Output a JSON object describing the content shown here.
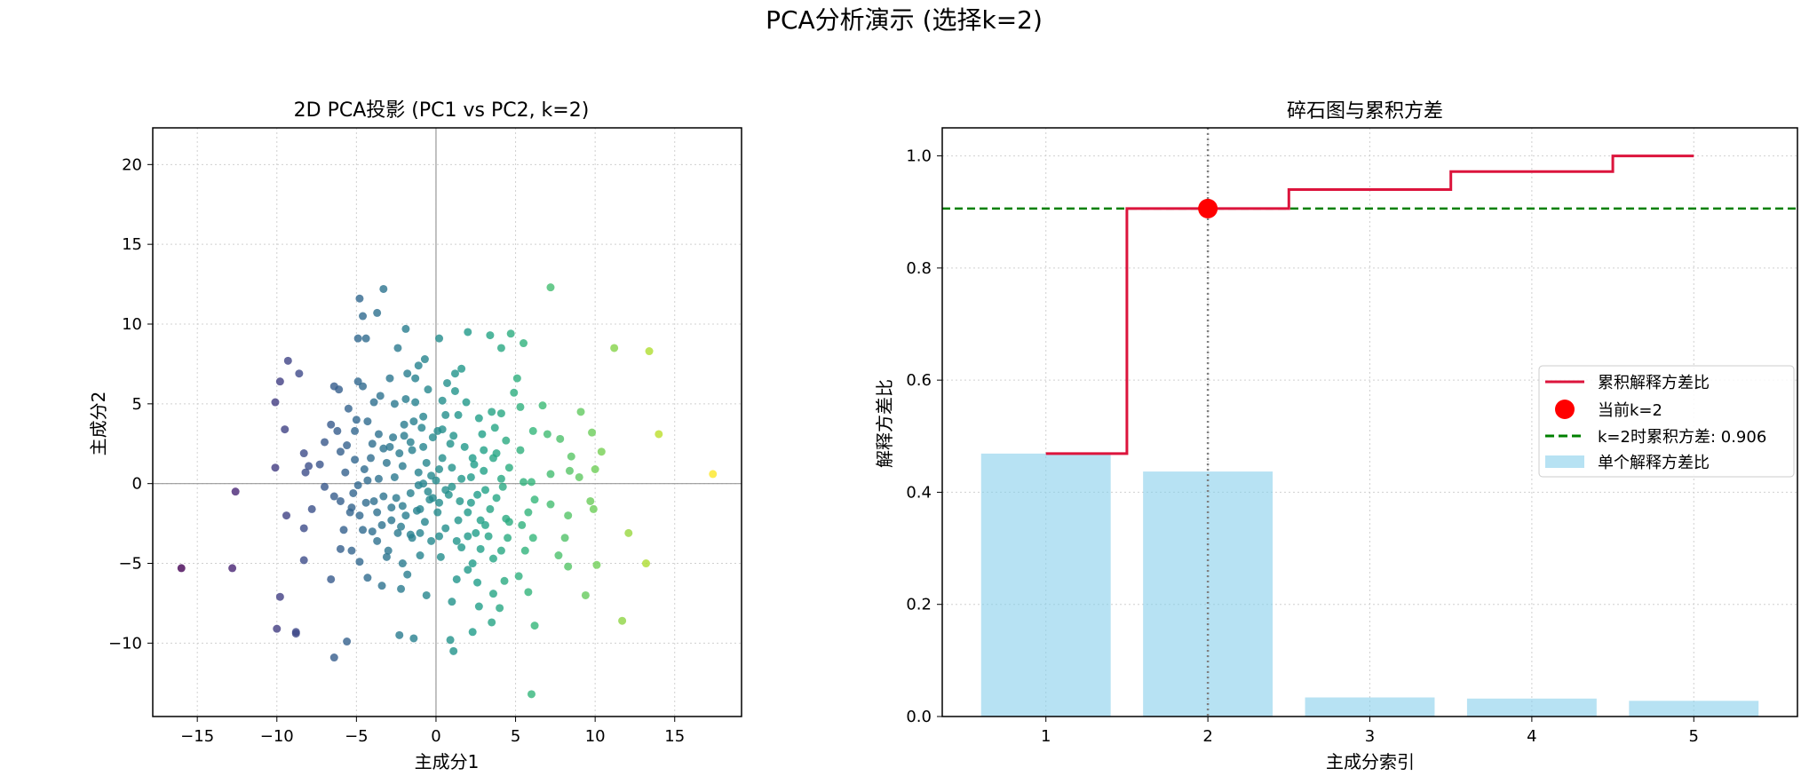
{
  "figure": {
    "suptitle": "PCA分析演示 (选择k=2)"
  },
  "chart_data": [
    {
      "type": "scatter",
      "title": "2D PCA投影 (PC1 vs PC2, k=2)",
      "xlabel": "主成分1",
      "ylabel": "主成分2",
      "xlim": [
        -17.8,
        19.2
      ],
      "ylim": [
        -14.6,
        22.3
      ],
      "xticks": [
        -15,
        -10,
        -5,
        0,
        5,
        10,
        15
      ],
      "yticks": [
        -10,
        -5,
        0,
        5,
        10,
        15,
        20
      ],
      "grid": true,
      "reference_lines": {
        "x": 0,
        "y": 0
      },
      "colormap": "viridis",
      "color_by": "x",
      "points": [
        [
          -16.0,
          -5.3
        ],
        [
          -12.8,
          -5.3
        ],
        [
          -12.6,
          -0.5
        ],
        [
          -10.0,
          -9.1
        ],
        [
          -9.8,
          -7.1
        ],
        [
          -10.1,
          5.1
        ],
        [
          -9.8,
          6.4
        ],
        [
          -9.3,
          7.7
        ],
        [
          -8.6,
          6.9
        ],
        [
          -9.5,
          3.4
        ],
        [
          -10.1,
          1.0
        ],
        [
          -9.4,
          -2.0
        ],
        [
          -8.8,
          -9.4
        ],
        [
          -8.8,
          -9.3
        ],
        [
          -8.3,
          -4.8
        ],
        [
          -8.3,
          -2.8
        ],
        [
          -8.3,
          1.9
        ],
        [
          -8.0,
          1.1
        ],
        [
          -8.2,
          0.7
        ],
        [
          -7.8,
          -1.6
        ],
        [
          -6.4,
          -10.9
        ],
        [
          -5.6,
          -9.9
        ],
        [
          -6.6,
          -6.0
        ],
        [
          -6.4,
          6.1
        ],
        [
          -6.1,
          5.9
        ],
        [
          -6.0,
          2.0
        ],
        [
          -6.6,
          3.7
        ],
        [
          -6.0,
          -1.1
        ],
        [
          -5.8,
          -2.9
        ],
        [
          -6.0,
          -4.1
        ],
        [
          -5.5,
          4.7
        ],
        [
          -5.1,
          1.5
        ],
        [
          -5.7,
          0.7
        ],
        [
          -5.4,
          -1.8
        ],
        [
          -5.3,
          -4.2
        ],
        [
          -4.8,
          11.6
        ],
        [
          -4.9,
          9.1
        ],
        [
          -4.6,
          10.5
        ],
        [
          -4.4,
          9.1
        ],
        [
          -3.7,
          10.7
        ],
        [
          -3.3,
          12.2
        ],
        [
          -4.9,
          6.4
        ],
        [
          -4.6,
          6.1
        ],
        [
          -3.5,
          5.5
        ],
        [
          -4.3,
          3.9
        ],
        [
          -4.0,
          2.5
        ],
        [
          -4.5,
          0.9
        ],
        [
          -4.9,
          -0.1
        ],
        [
          -4.4,
          -1.2
        ],
        [
          -3.7,
          -1.8
        ],
        [
          -4.0,
          -3.0
        ],
        [
          -4.8,
          -4.9
        ],
        [
          -4.3,
          -5.9
        ],
        [
          -3.4,
          -6.4
        ],
        [
          -3.0,
          -4.2
        ],
        [
          -2.8,
          -2.3
        ],
        [
          -2.4,
          -3.1
        ],
        [
          -2.1,
          -1.4
        ],
        [
          -2.6,
          0.4
        ],
        [
          -2.9,
          2.3
        ],
        [
          -2.3,
          1.9
        ],
        [
          -2.6,
          5.0
        ],
        [
          -2.0,
          3.7
        ],
        [
          -1.9,
          5.3
        ],
        [
          -1.4,
          3.9
        ],
        [
          -2.4,
          8.5
        ],
        [
          -1.9,
          9.7
        ],
        [
          -1.3,
          6.6
        ],
        [
          -1.1,
          7.4
        ],
        [
          -0.7,
          7.8
        ],
        [
          -1.3,
          5.1
        ],
        [
          -0.9,
          3.5
        ],
        [
          -1.5,
          2.1
        ],
        [
          -0.6,
          1.3
        ],
        [
          -1.1,
          -0.1
        ],
        [
          -0.5,
          -0.5
        ],
        [
          -1.2,
          -1.7
        ],
        [
          -1.6,
          -3.2
        ],
        [
          -1.0,
          -4.5
        ],
        [
          -1.8,
          -5.7
        ],
        [
          -2.2,
          -6.6
        ],
        [
          -2.3,
          -9.5
        ],
        [
          -1.4,
          -9.7
        ],
        [
          -0.6,
          -7.0
        ],
        [
          0.3,
          -4.6
        ],
        [
          0.6,
          -2.8
        ],
        [
          0.1,
          -1.8
        ],
        [
          0.8,
          -0.7
        ],
        [
          0.0,
          0.2
        ],
        [
          0.4,
          1.6
        ],
        [
          0.9,
          2.5
        ],
        [
          0.1,
          3.3
        ],
        [
          0.6,
          4.3
        ],
        [
          0.2,
          9.1
        ],
        [
          0.7,
          6.3
        ],
        [
          1.2,
          6.9
        ],
        [
          1.6,
          7.2
        ],
        [
          1.9,
          5.1
        ],
        [
          1.4,
          4.3
        ],
        [
          2.7,
          4.1
        ],
        [
          2.9,
          3.1
        ],
        [
          2.4,
          1.2
        ],
        [
          3.6,
          1.6
        ],
        [
          3.1,
          -0.4
        ],
        [
          2.2,
          -1.2
        ],
        [
          1.4,
          -2.3
        ],
        [
          2.0,
          -3.3
        ],
        [
          2.8,
          -4.1
        ],
        [
          2.0,
          -5.4
        ],
        [
          1.3,
          -6.0
        ],
        [
          2.6,
          -6.2
        ],
        [
          3.6,
          -6.9
        ],
        [
          1.0,
          -7.4
        ],
        [
          0.9,
          -9.8
        ],
        [
          1.1,
          -10.5
        ],
        [
          2.3,
          -9.3
        ],
        [
          3.5,
          -8.7
        ],
        [
          2.7,
          -7.7
        ],
        [
          4.0,
          -7.8
        ],
        [
          4.3,
          -6.1
        ],
        [
          5.2,
          -5.8
        ],
        [
          5.8,
          -6.8
        ],
        [
          6.2,
          -8.9
        ],
        [
          6.0,
          -13.2
        ],
        [
          7.2,
          12.3
        ],
        [
          5.5,
          8.8
        ],
        [
          4.7,
          9.4
        ],
        [
          3.4,
          9.3
        ],
        [
          2.0,
          9.5
        ],
        [
          4.1,
          8.5
        ],
        [
          5.1,
          6.6
        ],
        [
          4.9,
          5.7
        ],
        [
          5.3,
          4.8
        ],
        [
          4.1,
          4.4
        ],
        [
          3.5,
          4.5
        ],
        [
          3.7,
          3.5
        ],
        [
          4.4,
          2.7
        ],
        [
          5.3,
          2.1
        ],
        [
          6.1,
          3.3
        ],
        [
          7.0,
          3.1
        ],
        [
          6.7,
          4.9
        ],
        [
          7.8,
          2.8
        ],
        [
          9.1,
          4.5
        ],
        [
          9.8,
          3.2
        ],
        [
          10.4,
          2.0
        ],
        [
          8.5,
          1.7
        ],
        [
          7.2,
          0.6
        ],
        [
          6.0,
          0.1
        ],
        [
          5.5,
          0.1
        ],
        [
          8.4,
          0.8
        ],
        [
          9.0,
          0.4
        ],
        [
          10.0,
          0.9
        ],
        [
          9.7,
          -1.1
        ],
        [
          9.9,
          -1.6
        ],
        [
          7.2,
          -1.3
        ],
        [
          6.2,
          -1.0
        ],
        [
          5.8,
          -1.8
        ],
        [
          4.6,
          -2.4
        ],
        [
          4.4,
          -2.2
        ],
        [
          5.4,
          -2.6
        ],
        [
          6.1,
          -3.4
        ],
        [
          5.6,
          -4.2
        ],
        [
          7.7,
          -4.5
        ],
        [
          8.1,
          -3.4
        ],
        [
          8.3,
          -2.0
        ],
        [
          8.3,
          -5.2
        ],
        [
          10.1,
          -5.1
        ],
        [
          9.4,
          -7.0
        ],
        [
          11.7,
          -8.6
        ],
        [
          12.1,
          -3.1
        ],
        [
          13.2,
          -5.0
        ],
        [
          11.2,
          8.5
        ],
        [
          13.4,
          8.3
        ],
        [
          14.0,
          3.1
        ],
        [
          17.4,
          0.6
        ],
        [
          3.0,
          2.1
        ],
        [
          4.1,
          0.3
        ],
        [
          2.6,
          -0.7
        ],
        [
          3.1,
          -2.6
        ],
        [
          4.5,
          -3.4
        ],
        [
          3.6,
          -4.7
        ],
        [
          2.3,
          -5.0
        ],
        [
          1.6,
          -4.0
        ],
        [
          -0.3,
          -3.6
        ],
        [
          -0.7,
          -2.4
        ],
        [
          -1.5,
          -3.4
        ],
        [
          -2.1,
          -5.0
        ],
        [
          -3.1,
          -4.6
        ],
        [
          -3.7,
          -3.6
        ],
        [
          -4.6,
          -2.9
        ],
        [
          -5.3,
          -1.5
        ],
        [
          -6.4,
          -0.8
        ],
        [
          -7.0,
          -0.2
        ],
        [
          -7.3,
          1.2
        ],
        [
          -7.0,
          2.6
        ],
        [
          -6.2,
          3.3
        ],
        [
          -5.1,
          3.3
        ],
        [
          -3.6,
          3.1
        ],
        [
          -2.7,
          2.9
        ],
        [
          -1.6,
          2.6
        ],
        [
          -0.8,
          2.3
        ],
        [
          -0.2,
          2.9
        ],
        [
          0.4,
          3.4
        ],
        [
          1.1,
          3.0
        ],
        [
          1.8,
          2.3
        ],
        [
          2.3,
          1.6
        ],
        [
          1.0,
          1.0
        ],
        [
          0.2,
          0.9
        ],
        [
          -0.3,
          0.5
        ],
        [
          -0.8,
          0.0
        ],
        [
          -1.6,
          -0.6
        ],
        [
          -2.5,
          -0.9
        ],
        [
          -3.3,
          -0.8
        ],
        [
          -3.6,
          0.3
        ],
        [
          -3.1,
          1.3
        ],
        [
          -2.1,
          1.1
        ],
        [
          -1.1,
          0.7
        ],
        [
          -0.4,
          -1.0
        ],
        [
          0.2,
          -1.2
        ],
        [
          1.0,
          -0.2
        ],
        [
          1.5,
          -1.1
        ],
        [
          2.0,
          -1.8
        ],
        [
          2.8,
          -2.3
        ],
        [
          3.4,
          -1.6
        ],
        [
          3.8,
          -0.9
        ],
        [
          4.2,
          -0.2
        ],
        [
          4.6,
          1.0
        ],
        [
          3.8,
          1.9
        ],
        [
          3.0,
          0.8
        ],
        [
          2.2,
          0.4
        ],
        [
          1.6,
          0.3
        ],
        [
          0.6,
          -0.4
        ],
        [
          -0.2,
          -0.9
        ],
        [
          -1.0,
          -1.6
        ],
        [
          -1.9,
          -2.0
        ],
        [
          -2.8,
          -1.5
        ],
        [
          -3.9,
          -1.1
        ],
        [
          -4.3,
          0.2
        ],
        [
          -4.1,
          1.6
        ],
        [
          -3.3,
          2.2
        ],
        [
          -2.0,
          3.0
        ],
        [
          -0.8,
          4.2
        ],
        [
          0.4,
          5.2
        ],
        [
          1.2,
          5.8
        ],
        [
          -0.5,
          5.9
        ],
        [
          -1.8,
          6.9
        ],
        [
          -2.9,
          6.6
        ],
        [
          -3.9,
          5.1
        ],
        [
          -5.0,
          4.0
        ],
        [
          -5.6,
          2.4
        ],
        [
          -5.2,
          -0.6
        ],
        [
          -4.8,
          -2.0
        ],
        [
          -3.4,
          -2.6
        ],
        [
          -2.2,
          -2.7
        ],
        [
          -1.0,
          -3.1
        ],
        [
          0.2,
          -3.3
        ],
        [
          1.3,
          -3.6
        ],
        [
          2.5,
          -3.1
        ],
        [
          3.3,
          -3.3
        ],
        [
          4.1,
          -4.2
        ]
      ]
    },
    {
      "type": "bar",
      "title": "碎石图与累积方差",
      "xlabel": "主成分索引",
      "ylabel": "解释方差比",
      "categories": [
        1,
        2,
        3,
        4,
        5
      ],
      "xlim": [
        0.36,
        5.64
      ],
      "ylim": [
        0,
        1.05
      ],
      "xticks": [
        1,
        2,
        3,
        4,
        5
      ],
      "yticks": [
        0.0,
        0.2,
        0.4,
        0.6,
        0.8,
        1.0
      ],
      "ytick_labels": [
        "0.0",
        "0.2",
        "0.4",
        "0.6",
        "0.8",
        "1.0"
      ],
      "grid": true,
      "series": [
        {
          "name": "单个解释方差比",
          "kind": "bar",
          "color": "#87ceeb",
          "values": [
            0.469,
            0.437,
            0.034,
            0.032,
            0.028
          ]
        },
        {
          "name": "累积解释方差比",
          "kind": "step",
          "color": "#dc143c",
          "values": [
            0.469,
            0.906,
            0.94,
            0.972,
            1.0
          ]
        }
      ],
      "highlight_point": {
        "name": "当前k=2",
        "x": 2,
        "y": 0.906,
        "color": "#ff0000"
      },
      "hline": {
        "name": "k=2时累积方差: 0.906",
        "y": 0.906,
        "color": "#008000",
        "style": "dashed"
      },
      "vline": {
        "x": 2,
        "color": "#808080",
        "style": "dotted"
      },
      "legend": {
        "position": "center-right",
        "entries": [
          "累积解释方差比",
          "当前k=2",
          "k=2时累积方差: 0.906",
          "单个解释方差比"
        ]
      }
    }
  ]
}
